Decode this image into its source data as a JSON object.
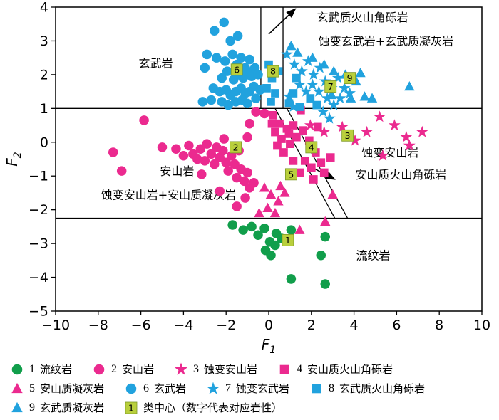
{
  "chart_data": {
    "type": "scatter",
    "title": "",
    "xlabel": "F",
    "xlabel_sub": "1",
    "ylabel": "F",
    "ylabel_sub": "2",
    "xlim": [
      -10,
      10
    ],
    "ylim": [
      -5,
      4
    ],
    "x_ticks": [
      -10,
      -8,
      -6,
      -4,
      -2,
      0,
      2,
      4,
      6,
      8,
      10
    ],
    "y_ticks": [
      -5,
      -4,
      -3,
      -2,
      -1,
      0,
      1,
      2,
      3,
      4
    ],
    "grid": false,
    "legend_position": "bottom",
    "boundaries": [
      {
        "name": "basalt-andesite",
        "x1": -10,
        "y1": 1,
        "x2": 10,
        "y2": 1
      },
      {
        "name": "andesite-rhyolite",
        "x1": -10,
        "y1": -2.25,
        "x2": 10,
        "y2": -2.25
      },
      {
        "name": "basaltic-breccia-band-left",
        "x1": -0.37,
        "y1": 4,
        "x2": -0.37,
        "y2": 1
      },
      {
        "name": "basaltic-breccia-band-right",
        "x1": 0.67,
        "y1": 4,
        "x2": 0.67,
        "y2": 1
      },
      {
        "name": "andesitic-breccia-band-left",
        "x1": 0.3,
        "y1": 1,
        "x2": 3.1,
        "y2": -2.25
      },
      {
        "name": "andesitic-breccia-band-right",
        "x1": 0.85,
        "y1": 1,
        "x2": 3.7,
        "y2": -2.25
      }
    ],
    "arrows": [
      {
        "x1": 0.0,
        "y1": 3.2,
        "x2": 1.25,
        "y2": 3.95
      },
      {
        "x1": 1.8,
        "y1": -0.67,
        "x2": 3.1,
        "y2": -1.1
      }
    ],
    "region_labels": [
      {
        "text": "玄武岩",
        "x": -5.3,
        "y": 2.35
      },
      {
        "text": "玄武质火山角砾岩",
        "x": 4.4,
        "y": 3.7
      },
      {
        "text": "蚀变玄武岩+玄武质凝灰岩",
        "x": 5.5,
        "y": 3.0
      },
      {
        "text": "蚀变安山岩",
        "x": 5.7,
        "y": -0.3
      },
      {
        "text": "安山岩",
        "x": -4.3,
        "y": -0.85
      },
      {
        "text": "蚀变安山岩+安山质凝灰岩",
        "x": -4.7,
        "y": -1.55
      },
      {
        "text": "安山质火山角砾岩",
        "x": 6.2,
        "y": -0.95
      },
      {
        "text": "流纹岩",
        "x": 4.9,
        "y": -3.35
      }
    ],
    "series": [
      {
        "id": 1,
        "name": "流纹岩",
        "marker": "circle",
        "color": "#119e4b",
        "points": [
          [
            -1.7,
            -2.45
          ],
          [
            -1.2,
            -2.6
          ],
          [
            -0.8,
            -2.5
          ],
          [
            -0.5,
            -2.75
          ],
          [
            -0.2,
            -2.55
          ],
          [
            0.05,
            -2.95
          ],
          [
            0.35,
            -2.7
          ],
          [
            0.3,
            -3.05
          ],
          [
            -0.15,
            -3.2
          ],
          [
            0.6,
            -2.85
          ],
          [
            1.05,
            -2.6
          ],
          [
            0.1,
            -3.35
          ],
          [
            2.45,
            -3.35
          ],
          [
            1.05,
            -4.05
          ],
          [
            2.65,
            -4.2
          ],
          [
            2.65,
            -2.8
          ]
        ]
      },
      {
        "id": 2,
        "name": "安山岩",
        "marker": "circle",
        "color": "#eb2a8f",
        "points": [
          [
            -5.85,
            0.65
          ],
          [
            -7.3,
            -0.3
          ],
          [
            -6.9,
            -0.85
          ],
          [
            -5.0,
            -0.15
          ],
          [
            -4.35,
            -0.2
          ],
          [
            -4.0,
            -0.4
          ],
          [
            -3.75,
            -0.1
          ],
          [
            -3.55,
            -0.35
          ],
          [
            -3.35,
            -0.5
          ],
          [
            -3.2,
            -0.2
          ],
          [
            -3.0,
            -0.55
          ],
          [
            -2.9,
            -0.05
          ],
          [
            -2.7,
            -0.35
          ],
          [
            -2.55,
            -0.65
          ],
          [
            -2.45,
            -0.15
          ],
          [
            -2.3,
            -0.45
          ],
          [
            -2.15,
            -0.25
          ],
          [
            -2.0,
            -0.6
          ],
          [
            -1.9,
            -0.85
          ],
          [
            -1.75,
            -0.4
          ],
          [
            -1.6,
            -0.65
          ],
          [
            -1.5,
            -1.05
          ],
          [
            -1.4,
            -0.25
          ],
          [
            -1.3,
            -0.8
          ],
          [
            -1.15,
            -1.15
          ],
          [
            -1.0,
            -0.9
          ],
          [
            -0.9,
            -1.35
          ],
          [
            -1.1,
            -1.65
          ],
          [
            -0.7,
            -1.2
          ],
          [
            -2.3,
            -1.45
          ],
          [
            -3.15,
            -0.95
          ],
          [
            -1.0,
            0.15
          ],
          [
            -2.1,
            0.1
          ],
          [
            -0.6,
            0.9
          ],
          [
            -1.5,
            -1.9
          ],
          [
            -0.9,
            0.55
          ],
          [
            -0.2,
            0.85
          ]
        ]
      },
      {
        "id": 3,
        "name": "蚀变安山岩",
        "marker": "star",
        "color": "#eb2a8f",
        "points": [
          [
            1.95,
            0.5
          ],
          [
            2.6,
            0.3
          ],
          [
            3.45,
            0.45
          ],
          [
            4.6,
            0.3
          ],
          [
            5.2,
            0.75
          ],
          [
            5.9,
            0.5
          ],
          [
            6.45,
            0.15
          ],
          [
            7.2,
            0.3
          ],
          [
            6.6,
            -0.1
          ],
          [
            5.35,
            -0.4
          ],
          [
            4.05,
            0.05
          ]
        ]
      },
      {
        "id": 4,
        "name": "安山质火山角砾岩",
        "marker": "square",
        "color": "#eb2a8f",
        "points": [
          [
            0.2,
            0.8
          ],
          [
            0.5,
            0.55
          ],
          [
            0.85,
            0.4
          ],
          [
            0.3,
            0.3
          ],
          [
            0.6,
            0.1
          ],
          [
            0.95,
            0.25
          ],
          [
            1.15,
            0.5
          ],
          [
            0.4,
            -0.1
          ],
          [
            0.7,
            -0.3
          ],
          [
            1.0,
            -0.05
          ],
          [
            1.3,
            0.15
          ],
          [
            1.6,
            0.35
          ],
          [
            1.9,
            0.05
          ],
          [
            2.2,
            -0.3
          ],
          [
            1.7,
            -0.55
          ],
          [
            2.0,
            -0.75
          ],
          [
            2.45,
            -0.6
          ],
          [
            2.6,
            -0.9
          ],
          [
            1.45,
            -0.9
          ],
          [
            2.1,
            -1.1
          ],
          [
            2.9,
            -0.45
          ],
          [
            1.15,
            -0.55
          ],
          [
            0.15,
            0.55
          ],
          [
            2.3,
            0.45
          ],
          [
            1.5,
            0.95
          ]
        ]
      },
      {
        "id": 5,
        "name": "安山质凝灰岩",
        "marker": "triangle",
        "color": "#eb2a8f",
        "points": [
          [
            -0.2,
            -1.35
          ],
          [
            0.1,
            -1.55
          ],
          [
            0.45,
            -1.75
          ],
          [
            -0.05,
            -1.95
          ],
          [
            0.3,
            -2.1
          ],
          [
            0.75,
            -1.5
          ],
          [
            1.45,
            -2.6
          ],
          [
            2.65,
            -2.35
          ],
          [
            3.0,
            -1.55
          ],
          [
            -0.45,
            -2.1
          ],
          [
            0.55,
            -1.3
          ]
        ]
      },
      {
        "id": 6,
        "name": "玄武岩",
        "marker": "circle",
        "color": "#21a2de",
        "points": [
          [
            -2.55,
            3.3
          ],
          [
            -2.1,
            3.55
          ],
          [
            -1.8,
            3.0
          ],
          [
            -1.45,
            3.15
          ],
          [
            -2.9,
            2.6
          ],
          [
            -2.45,
            2.5
          ],
          [
            -2.05,
            2.4
          ],
          [
            -1.7,
            2.6
          ],
          [
            -1.5,
            2.3
          ],
          [
            -1.3,
            2.5
          ],
          [
            -1.1,
            2.2
          ],
          [
            -0.9,
            2.45
          ],
          [
            -1.95,
            2.1
          ],
          [
            -2.2,
            1.9
          ],
          [
            -1.65,
            1.85
          ],
          [
            -1.4,
            2.0
          ],
          [
            -1.2,
            1.9
          ],
          [
            -1.0,
            2.1
          ],
          [
            -0.8,
            1.95
          ],
          [
            -0.65,
            2.2
          ],
          [
            -2.6,
            1.6
          ],
          [
            -2.3,
            1.5
          ],
          [
            -2.0,
            1.55
          ],
          [
            -1.8,
            1.4
          ],
          [
            -1.55,
            1.5
          ],
          [
            -1.3,
            1.6
          ],
          [
            -1.1,
            1.45
          ],
          [
            -0.9,
            1.5
          ],
          [
            -0.7,
            1.65
          ],
          [
            -3.1,
            1.2
          ],
          [
            -2.7,
            1.25
          ],
          [
            -2.2,
            1.2
          ],
          [
            -1.9,
            1.1
          ],
          [
            -1.55,
            1.2
          ],
          [
            -1.25,
            1.25
          ],
          [
            -1.0,
            1.15
          ],
          [
            -0.6,
            1.3
          ],
          [
            -0.4,
            1.55
          ],
          [
            -0.5,
            2.0
          ],
          [
            -3.0,
            2.2
          ]
        ]
      },
      {
        "id": 7,
        "name": "蚀变玄武岩",
        "marker": "star",
        "color": "#21a2de",
        "points": [
          [
            0.85,
            2.6
          ],
          [
            1.2,
            2.3
          ],
          [
            1.55,
            2.1
          ],
          [
            1.85,
            2.4
          ],
          [
            2.1,
            2.0
          ],
          [
            2.4,
            2.2
          ],
          [
            1.45,
            1.7
          ],
          [
            1.75,
            1.5
          ],
          [
            2.05,
            1.7
          ],
          [
            2.35,
            1.5
          ],
          [
            2.65,
            1.8
          ],
          [
            2.95,
            1.6
          ],
          [
            3.25,
            1.9
          ],
          [
            3.55,
            1.6
          ],
          [
            2.75,
            1.3
          ],
          [
            3.05,
            1.1
          ],
          [
            3.35,
            1.3
          ],
          [
            2.55,
            0.9
          ],
          [
            2.85,
            0.7
          ],
          [
            1.15,
            1.05
          ],
          [
            0.95,
            1.35
          ],
          [
            3.8,
            1.45
          ]
        ]
      },
      {
        "id": 8,
        "name": "玄武质火山角砾岩",
        "marker": "square",
        "color": "#21a2de",
        "points": [
          [
            0.0,
            2.3
          ],
          [
            0.15,
            1.9
          ],
          [
            -0.1,
            1.6
          ],
          [
            0.3,
            1.45
          ],
          [
            0.1,
            1.2
          ],
          [
            1.3,
            1.9
          ],
          [
            1.95,
            1.3
          ],
          [
            2.25,
            1.1
          ],
          [
            0.95,
            1.15
          ],
          [
            1.45,
            1.05
          ],
          [
            0.45,
            2.1
          ],
          [
            1.15,
            1.45
          ]
        ]
      },
      {
        "id": 9,
        "name": "玄武质凝灰岩",
        "marker": "triangle",
        "color": "#21a2de",
        "points": [
          [
            1.05,
            2.85
          ],
          [
            2.05,
            2.5
          ],
          [
            2.6,
            2.3
          ],
          [
            3.05,
            2.1
          ],
          [
            3.6,
            2.0
          ],
          [
            4.1,
            1.8
          ],
          [
            4.5,
            1.35
          ],
          [
            3.85,
            1.3
          ],
          [
            4.85,
            1.3
          ],
          [
            6.6,
            1.65
          ],
          [
            2.95,
            1.4
          ],
          [
            1.35,
            2.65
          ],
          [
            4.3,
            2.05
          ]
        ]
      }
    ],
    "class_centers": {
      "fill": "#b9cf3c",
      "items": [
        {
          "n": "1",
          "x": 0.9,
          "y": -2.9
        },
        {
          "n": "2",
          "x": -1.55,
          "y": -0.15
        },
        {
          "n": "3",
          "x": 3.7,
          "y": 0.2
        },
        {
          "n": "4",
          "x": 2.0,
          "y": -0.15
        },
        {
          "n": "5",
          "x": 1.05,
          "y": -0.95
        },
        {
          "n": "6",
          "x": -1.5,
          "y": 2.15
        },
        {
          "n": "7",
          "x": 2.9,
          "y": 1.65
        },
        {
          "n": "8",
          "x": 0.2,
          "y": 2.1
        },
        {
          "n": "9",
          "x": 3.8,
          "y": 1.9
        }
      ]
    },
    "colors": {
      "rhyolite_green": "#119e4b",
      "andesite_pink": "#eb2a8f",
      "basalt_blue": "#21a2de",
      "class_center_fill": "#b9cf3c",
      "line_black": "#000000"
    }
  },
  "legend": {
    "rows": [
      [
        {
          "marker": "circle",
          "color": "#119e4b",
          "num": "1",
          "label": "流纹岩"
        },
        {
          "marker": "circle",
          "color": "#eb2a8f",
          "num": "2",
          "label": "安山岩"
        },
        {
          "marker": "star",
          "color": "#eb2a8f",
          "num": "3",
          "label": "蚀变安山岩"
        },
        {
          "marker": "square",
          "color": "#eb2a8f",
          "num": "4",
          "label": "安山质火山角砾岩"
        }
      ],
      [
        {
          "marker": "triangle",
          "color": "#eb2a8f",
          "num": "5",
          "label": "安山质凝灰岩"
        },
        {
          "marker": "circle",
          "color": "#21a2de",
          "num": "6",
          "label": "玄武岩"
        },
        {
          "marker": "star",
          "color": "#21a2de",
          "num": "7",
          "label": "蚀变玄武岩"
        },
        {
          "marker": "square",
          "color": "#21a2de",
          "num": "8",
          "label": "玄武质火山角砾岩"
        }
      ],
      [
        {
          "marker": "triangle",
          "color": "#21a2de",
          "num": "9",
          "label": "玄武质凝灰岩"
        },
        {
          "marker": "center",
          "color": "#b9cf3c",
          "num": "1",
          "label": "类中心（数字代表对应岩性）"
        }
      ]
    ]
  }
}
